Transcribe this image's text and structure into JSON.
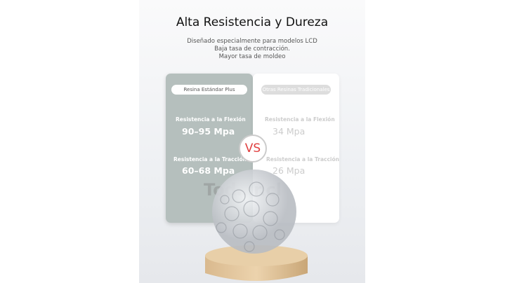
{
  "header": {
    "title": "Alta Resistencia y Dureza",
    "subtitle": [
      "Diseñado especialmente para modelos LCD",
      "Baja tasa de contracción.",
      "Mayor tasa de moldeo"
    ]
  },
  "comparison": {
    "left": {
      "label": "Resina Estándar Plus",
      "flexion_label": "Resistencia a la Flexión",
      "flexion_value": "90–95 Mpa",
      "traccion_label": "Resistencia a la Tracción",
      "traccion_value": "60–68 Mpa"
    },
    "vs": "VS",
    "right": {
      "label": "Otras Resinas Tradicionales",
      "flexion_label": "Resistencia a la Flexión",
      "flexion_value": "34 Mpa",
      "traccion_label": "Resistencia a la Tracción",
      "traccion_value": "26 Mpa"
    }
  },
  "watermark": "Tod…r.cl",
  "colors": {
    "left_card": "#b5bfbd",
    "vs_text": "#e04040"
  }
}
